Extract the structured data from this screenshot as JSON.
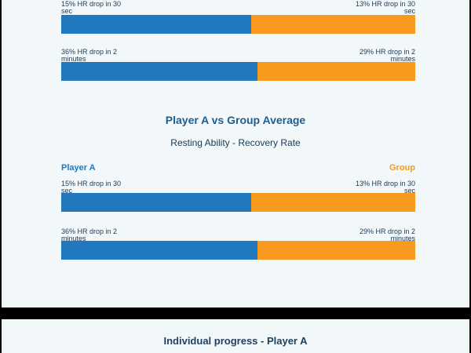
{
  "colors": {
    "player": "#2178bd",
    "group": "#f79a1e",
    "panel": "#f2f7fa"
  },
  "section_prev": {
    "rows": [
      {
        "player_label": "15% HR drop in 30 sec",
        "group_label": "13% HR drop in 30 sec",
        "player_value": 15,
        "group_value": 13
      },
      {
        "player_label": "36% HR drop in 2 minutes",
        "group_label": "29% HR drop in 2 minutes",
        "player_value": 36,
        "group_value": 29
      }
    ]
  },
  "comparison": {
    "title": "Player A vs Group Average",
    "subtitle": "Resting Ability - Recovery Rate",
    "legend_player": "Player A",
    "legend_group": "Group",
    "rows": [
      {
        "player_label": "15% HR drop in 30 sec",
        "group_label": "13% HR drop in 30 sec",
        "player_value": 15,
        "group_value": 13
      },
      {
        "player_label": "36% HR drop in 2 minutes",
        "group_label": "29% HR drop in 2 minutes",
        "player_value": 36,
        "group_value": 29
      }
    ]
  },
  "progress": {
    "title": "Individual progress - Player A"
  }
}
